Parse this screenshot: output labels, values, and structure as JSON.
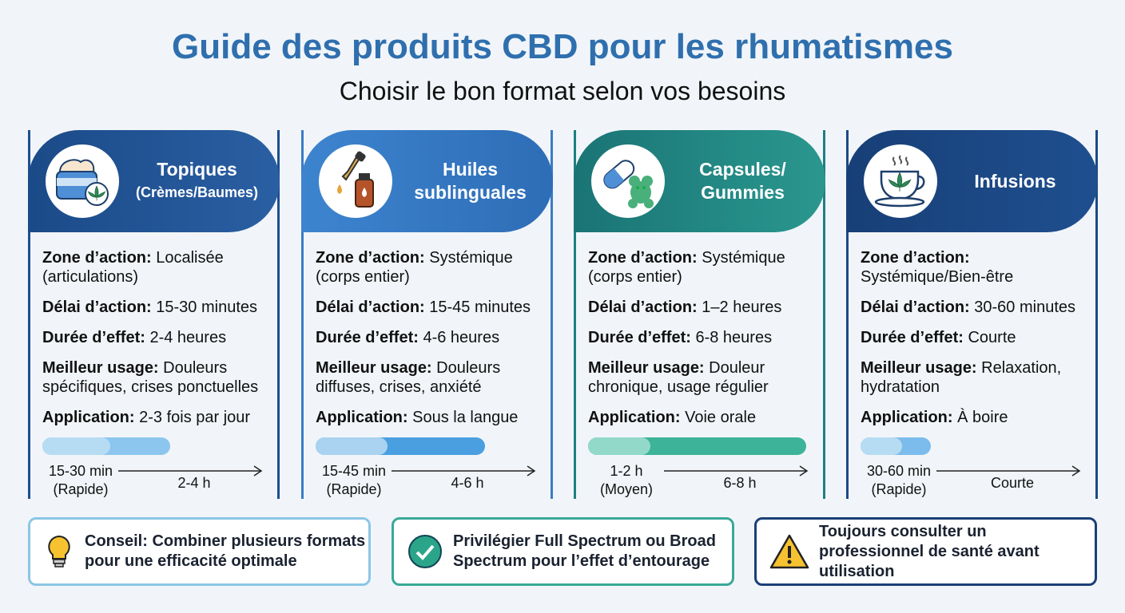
{
  "header": {
    "title": "Guide des produits CBD pour les rhumatismes",
    "subtitle": "Choisir le bon format selon vos besoins"
  },
  "cards": [
    {
      "title": [
        "Topiques"
      ],
      "subtitle": "(Crèmes/Baumes)",
      "rows": [
        {
          "label": "Zone d’action:",
          "value": "Localisée (articulations)"
        },
        {
          "label": "Délai d’action:",
          "value": "15-30 minutes"
        },
        {
          "label": "Durée d’effet:",
          "value": "2-4 heures"
        },
        {
          "label": "Meilleur usage:",
          "value": "Douleurs spécifiques, crises ponctuelles"
        },
        {
          "label": "Application:",
          "value": "2-3 fois par jour"
        }
      ],
      "timeline": {
        "onset": "15-30 min",
        "speed": "(Rapide)",
        "duration": "2-4 h"
      }
    },
    {
      "title": [
        "Huiles",
        "sublinguales"
      ],
      "rows": [
        {
          "label": "Zone d’action:",
          "value": "Systémique (corps entier)"
        },
        {
          "label": "Délai d’action:",
          "value": "15-45 minutes"
        },
        {
          "label": "Durée d’effet:",
          "value": "4-6 heures"
        },
        {
          "label": "Meilleur usage:",
          "value": "Douleurs diffuses, crises, anxiété"
        },
        {
          "label": "Application:",
          "value": "Sous la langue"
        }
      ],
      "timeline": {
        "onset": "15-45 min",
        "speed": "(Rapide)",
        "duration": "4-6 h"
      }
    },
    {
      "title": [
        "Capsules/",
        "Gummies"
      ],
      "rows": [
        {
          "label": "Zone d’action:",
          "value": "Systémique (corps entier)"
        },
        {
          "label": "Délai d’action:",
          "value": "1–2 heures"
        },
        {
          "label": "Durée d’effet:",
          "value": "6-8 heures"
        },
        {
          "label": "Meilleur usage:",
          "value": "Douleur chronique, usage régulier"
        },
        {
          "label": "Application:",
          "value": "Voie orale"
        }
      ],
      "timeline": {
        "onset": "1-2 h",
        "speed": "(Moyen)",
        "duration": "6-8 h"
      }
    },
    {
      "title": [
        "Infusions"
      ],
      "rows": [
        {
          "label": "Zone d’action:",
          "value": "Systémique/Bien-être"
        },
        {
          "label": "Délai d’action:",
          "value": "30-60 minutes"
        },
        {
          "label": "Durée d’effet:",
          "value": "Courte"
        },
        {
          "label": "Meilleur usage:",
          "value": "Relaxation, hydratation"
        },
        {
          "label": "Application:",
          "value": "À boire"
        }
      ],
      "timeline": {
        "onset": "30-60 min",
        "speed": "(Rapide)",
        "duration": "Courte"
      }
    }
  ],
  "tips": [
    "Conseil: Combiner plusieurs formats pour une efficacité optimale",
    "Privilégier Full Spectrum ou Broad Spectrum pour l’effet d’entourage",
    "Toujours consulter un professionnel de santé avant utilisation"
  ]
}
